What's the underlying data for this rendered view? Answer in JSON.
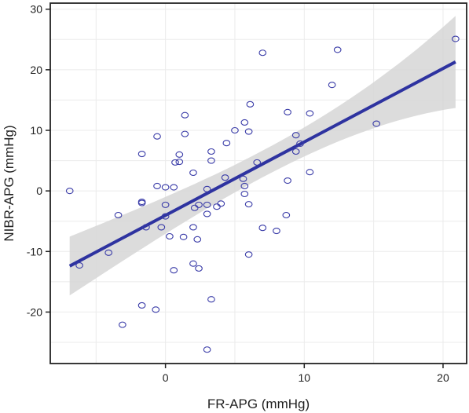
{
  "chart_data": {
    "type": "scatter",
    "title": "",
    "xlabel": "FR-APG (mmHg)",
    "ylabel": "NIBR-APG (mmHg)",
    "xlim": [
      -8.3,
      21.7
    ],
    "ylim": [
      -28.5,
      31
    ],
    "xticks": [
      0,
      10,
      20
    ],
    "yticks": [
      -20,
      -10,
      0,
      10,
      20,
      30
    ],
    "xtick_labels": [
      "0",
      "10",
      "20"
    ],
    "ytick_labels": [
      "-20",
      "-10",
      "0",
      "10",
      "20",
      "30"
    ],
    "grid": true,
    "legend": "none",
    "series": [
      {
        "x": [
          -6.9,
          -6.2,
          -4.1,
          -3.4,
          -3.1,
          -1.7,
          -1.7,
          -1.7,
          -1.7,
          -1.4,
          -0.7,
          -0.6,
          -0.6,
          -0.3,
          0.0,
          0.0,
          0.0,
          0.3,
          0.6,
          0.6,
          0.7,
          1.0,
          1.0,
          1.3,
          1.4,
          1.4,
          2.0,
          2.0,
          2.0,
          2.1,
          2.3,
          2.4,
          2.4,
          3.0,
          3.0,
          3.0,
          3.0,
          3.3,
          3.3,
          3.3,
          3.7,
          4.0,
          4.3,
          4.4,
          5.0,
          5.6,
          5.7,
          5.7,
          5.7,
          6.0,
          6.0,
          6.0,
          6.1,
          6.6,
          7.0,
          7.0,
          8.0,
          8.7,
          8.8,
          8.8,
          9.4,
          9.4,
          9.7,
          10.4,
          10.4,
          12.0,
          12.4,
          15.2,
          20.9
        ],
        "y": [
          0.0,
          -12.3,
          -10.2,
          -4.0,
          -22.1,
          -1.8,
          -18.9,
          6.1,
          -2.0,
          -6.0,
          -19.6,
          9.0,
          0.8,
          -6.0,
          -2.3,
          0.6,
          -4.2,
          -7.5,
          0.6,
          -13.1,
          4.7,
          4.8,
          6.0,
          -7.6,
          12.5,
          9.4,
          -12.0,
          -6.0,
          3.0,
          -2.8,
          -8.0,
          -12.8,
          -2.3,
          -3.8,
          0.3,
          -26.2,
          -2.3,
          6.5,
          5.0,
          -17.9,
          -2.6,
          -2.1,
          2.2,
          7.9,
          10.0,
          2.0,
          -0.5,
          0.8,
          11.3,
          9.8,
          -2.2,
          -10.5,
          14.3,
          4.7,
          22.8,
          -6.1,
          -6.6,
          -4.0,
          1.7,
          13.0,
          9.2,
          6.5,
          7.8,
          3.1,
          12.8,
          17.5,
          23.3,
          11.1,
          25.1
        ]
      }
    ],
    "regression": {
      "x": [
        -6.9,
        20.9
      ],
      "y": [
        -12.4,
        21.3
      ],
      "ci_lower": [
        -17.3,
        13.7
      ],
      "ci_upper": [
        -7.6,
        28.9
      ]
    },
    "colors": {
      "points": "#3a3ca8",
      "line": "#2e33a0",
      "band": "#d6d6d6",
      "grid": "#ebebeb",
      "frame": "#222222"
    }
  }
}
